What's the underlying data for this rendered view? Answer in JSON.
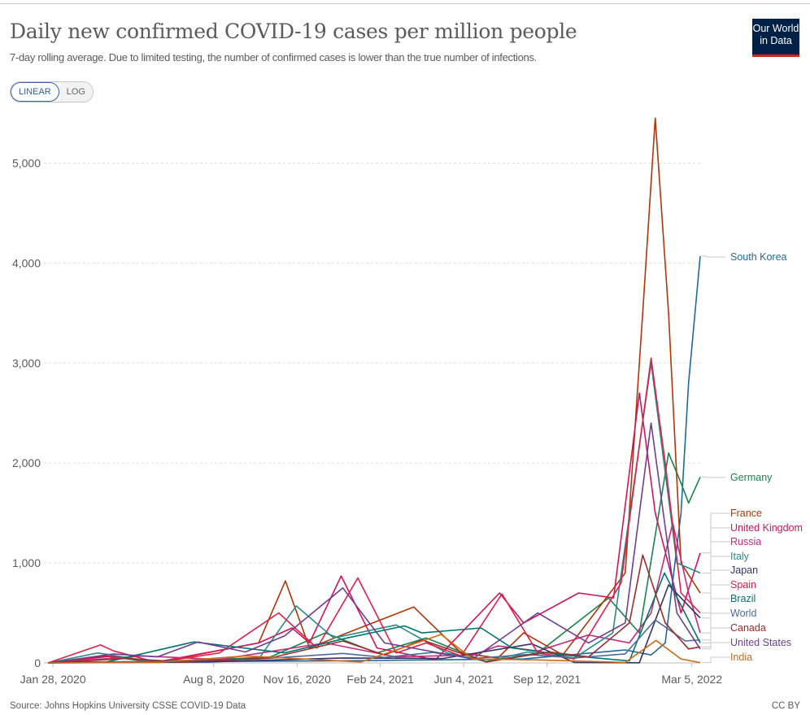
{
  "header": {
    "title": "Daily new confirmed COVID-19 cases per million people",
    "subtitle": "7-day rolling average. Due to limited testing, the number of confirmed cases is lower than the true number of infections.",
    "logo_line1": "Our World",
    "logo_line2": "in Data"
  },
  "scale_toggle": {
    "linear_label": "LINEAR",
    "log_label": "LOG",
    "selected": "LINEAR"
  },
  "footer": {
    "source": "Source: Johns Hopkins University CSSE COVID-19 Data",
    "license": "CC BY"
  },
  "colors": {
    "South Korea": "#1f6a9a",
    "Germany": "#18854c",
    "France": "#b13507",
    "United Kingdom": "#d2145a",
    "Russia": "#c42b7a",
    "Italy": "#2a8c87",
    "Japan": "#333366",
    "Spain": "#e0204b",
    "Brazil": "#00746f",
    "World": "#4c6a9c",
    "Canada": "#9a2d2d",
    "United States": "#6d3e91",
    "India": "#cf6a17"
  },
  "chart_data": {
    "type": "line",
    "title": "Daily new confirmed COVID-19 cases per million people",
    "xlabel": "",
    "ylabel": "",
    "x_ticks": [
      "Jan 28, 2020",
      "Aug 8, 2020",
      "Nov 16, 2020",
      "Feb 24, 2021",
      "Jun 4, 2021",
      "Sep 12, 2021",
      "Mar 5, 2022"
    ],
    "x_range": [
      "2020-01-22",
      "2022-03-15"
    ],
    "y_ticks": [
      0,
      1000,
      2000,
      3000,
      4000,
      5000
    ],
    "y_tick_labels": [
      "0",
      "1,000",
      "2,000",
      "3,000",
      "4,000",
      "5,000"
    ],
    "ylim": [
      0,
      5500
    ],
    "grid": "horizontal",
    "legend": "right (inline end labels)",
    "series": [
      {
        "name": "South Korea",
        "points": [
          [
            "2020-01-22",
            0
          ],
          [
            "2020-03-01",
            10
          ],
          [
            "2020-12-25",
            20
          ],
          [
            "2021-08-15",
            40
          ],
          [
            "2021-12-15",
            130
          ],
          [
            "2022-01-15",
            80
          ],
          [
            "2022-02-01",
            200
          ],
          [
            "2022-02-20",
            1500
          ],
          [
            "2022-03-01",
            2800
          ],
          [
            "2022-03-15",
            4070
          ]
        ]
      },
      {
        "name": "Germany",
        "points": [
          [
            "2020-01-22",
            0
          ],
          [
            "2020-03-28",
            70
          ],
          [
            "2020-06-01",
            5
          ],
          [
            "2020-10-15",
            60
          ],
          [
            "2020-12-20",
            300
          ],
          [
            "2021-02-20",
            100
          ],
          [
            "2021-04-20",
            250
          ],
          [
            "2021-07-01",
            10
          ],
          [
            "2021-09-01",
            100
          ],
          [
            "2021-11-25",
            650
          ],
          [
            "2022-01-01",
            300
          ],
          [
            "2022-02-05",
            2100
          ],
          [
            "2022-02-20",
            1800
          ],
          [
            "2022-03-01",
            1600
          ],
          [
            "2022-03-15",
            1860
          ]
        ]
      },
      {
        "name": "France",
        "points": [
          [
            "2020-01-22",
            0
          ],
          [
            "2020-04-01",
            70
          ],
          [
            "2020-06-01",
            5
          ],
          [
            "2020-10-01",
            200
          ],
          [
            "2020-11-02",
            820
          ],
          [
            "2020-12-01",
            150
          ],
          [
            "2021-01-15",
            300
          ],
          [
            "2021-04-05",
            560
          ],
          [
            "2021-06-01",
            100
          ],
          [
            "2021-07-15",
            50
          ],
          [
            "2021-08-15",
            300
          ],
          [
            "2021-10-01",
            80
          ],
          [
            "2021-12-15",
            900
          ],
          [
            "2022-01-05",
            3500
          ],
          [
            "2022-01-20",
            5450
          ],
          [
            "2022-02-05",
            3500
          ],
          [
            "2022-02-20",
            1000
          ],
          [
            "2022-03-15",
            700
          ]
        ]
      },
      {
        "name": "United Kingdom",
        "points": [
          [
            "2020-01-22",
            0
          ],
          [
            "2020-04-10",
            70
          ],
          [
            "2020-06-01",
            10
          ],
          [
            "2020-10-01",
            200
          ],
          [
            "2020-11-10",
            350
          ],
          [
            "2020-12-01",
            200
          ],
          [
            "2021-01-08",
            870
          ],
          [
            "2021-02-20",
            150
          ],
          [
            "2021-05-01",
            30
          ],
          [
            "2021-07-17",
            700
          ],
          [
            "2021-08-15",
            400
          ],
          [
            "2021-10-20",
            700
          ],
          [
            "2021-12-01",
            650
          ],
          [
            "2022-01-01",
            2700
          ],
          [
            "2022-01-20",
            1500
          ],
          [
            "2022-02-20",
            500
          ],
          [
            "2022-03-15",
            1100
          ]
        ]
      },
      {
        "name": "Russia",
        "points": [
          [
            "2020-01-22",
            0
          ],
          [
            "2020-05-15",
            70
          ],
          [
            "2020-08-15",
            35
          ],
          [
            "2020-12-20",
            200
          ],
          [
            "2021-03-15",
            60
          ],
          [
            "2021-06-15",
            80
          ],
          [
            "2021-07-15",
            170
          ],
          [
            "2021-09-01",
            120
          ],
          [
            "2021-11-01",
            280
          ],
          [
            "2021-12-20",
            200
          ],
          [
            "2022-01-15",
            500
          ],
          [
            "2022-02-10",
            1400
          ],
          [
            "2022-03-01",
            700
          ],
          [
            "2022-03-15",
            300
          ]
        ]
      },
      {
        "name": "Italy",
        "points": [
          [
            "2020-01-22",
            0
          ],
          [
            "2020-03-22",
            100
          ],
          [
            "2020-06-01",
            5
          ],
          [
            "2020-10-01",
            40
          ],
          [
            "2020-11-15",
            570
          ],
          [
            "2020-12-30",
            250
          ],
          [
            "2021-03-15",
            380
          ],
          [
            "2021-05-15",
            100
          ],
          [
            "2021-07-01",
            15
          ],
          [
            "2021-08-20",
            110
          ],
          [
            "2021-10-15",
            50
          ],
          [
            "2021-11-30",
            300
          ],
          [
            "2022-01-15",
            3000
          ],
          [
            "2022-02-15",
            1000
          ],
          [
            "2022-03-15",
            900
          ]
        ]
      },
      {
        "name": "Japan",
        "points": [
          [
            "2020-01-22",
            0
          ],
          [
            "2020-04-15",
            5
          ],
          [
            "2020-08-01",
            10
          ],
          [
            "2021-01-10",
            50
          ],
          [
            "2021-05-10",
            45
          ],
          [
            "2021-08-25",
            190
          ],
          [
            "2021-10-15",
            5
          ],
          [
            "2022-01-01",
            2
          ],
          [
            "2022-02-05",
            780
          ],
          [
            "2022-03-15",
            450
          ]
        ]
      },
      {
        "name": "Spain",
        "points": [
          [
            "2020-01-22",
            0
          ],
          [
            "2020-03-25",
            180
          ],
          [
            "2020-04-10",
            120
          ],
          [
            "2020-06-01",
            5
          ],
          [
            "2020-08-15",
            100
          ],
          [
            "2020-10-25",
            500
          ],
          [
            "2020-12-10",
            150
          ],
          [
            "2021-01-28",
            850
          ],
          [
            "2021-03-15",
            100
          ],
          [
            "2021-04-20",
            200
          ],
          [
            "2021-06-01",
            70
          ],
          [
            "2021-07-20",
            690
          ],
          [
            "2021-09-01",
            100
          ],
          [
            "2021-10-15",
            40
          ],
          [
            "2021-12-10",
            800
          ],
          [
            "2022-01-15",
            3050
          ],
          [
            "2022-02-01",
            2000
          ],
          [
            "2022-02-20",
            700
          ],
          [
            "2022-03-15",
            500
          ]
        ]
      },
      {
        "name": "Brazil",
        "points": [
          [
            "2020-01-22",
            0
          ],
          [
            "2020-04-01",
            10
          ],
          [
            "2020-07-15",
            210
          ],
          [
            "2020-11-01",
            100
          ],
          [
            "2021-01-15",
            250
          ],
          [
            "2021-03-25",
            370
          ],
          [
            "2021-04-15",
            300
          ],
          [
            "2021-06-25",
            350
          ],
          [
            "2021-08-01",
            150
          ],
          [
            "2021-10-01",
            80
          ],
          [
            "2021-12-20",
            20
          ],
          [
            "2022-01-31",
            900
          ],
          [
            "2022-03-15",
            200
          ]
        ]
      },
      {
        "name": "World",
        "points": [
          [
            "2020-01-22",
            0
          ],
          [
            "2020-04-15",
            10
          ],
          [
            "2020-07-01",
            25
          ],
          [
            "2020-10-01",
            40
          ],
          [
            "2021-01-10",
            95
          ],
          [
            "2021-03-01",
            55
          ],
          [
            "2021-04-28",
            105
          ],
          [
            "2021-06-15",
            45
          ],
          [
            "2021-08-20",
            85
          ],
          [
            "2021-10-15",
            50
          ],
          [
            "2021-12-15",
            90
          ],
          [
            "2022-01-20",
            430
          ],
          [
            "2022-02-25",
            220
          ],
          [
            "2022-03-15",
            230
          ]
        ]
      },
      {
        "name": "Canada",
        "points": [
          [
            "2020-01-22",
            0
          ],
          [
            "2020-04-25",
            45
          ],
          [
            "2020-07-01",
            10
          ],
          [
            "2020-10-15",
            50
          ],
          [
            "2021-01-10",
            220
          ],
          [
            "2021-03-01",
            80
          ],
          [
            "2021-04-15",
            230
          ],
          [
            "2021-07-01",
            10
          ],
          [
            "2021-09-15",
            110
          ],
          [
            "2021-11-01",
            60
          ],
          [
            "2021-12-20",
            400
          ],
          [
            "2022-01-05",
            1080
          ],
          [
            "2022-02-01",
            400
          ],
          [
            "2022-03-01",
            140
          ],
          [
            "2022-03-15",
            160
          ]
        ]
      },
      {
        "name": "United States",
        "points": [
          [
            "2020-01-22",
            0
          ],
          [
            "2020-04-10",
            90
          ],
          [
            "2020-06-01",
            60
          ],
          [
            "2020-07-20",
            210
          ],
          [
            "2020-09-15",
            110
          ],
          [
            "2020-11-01",
            270
          ],
          [
            "2021-01-10",
            750
          ],
          [
            "2021-03-01",
            200
          ],
          [
            "2021-06-15",
            40
          ],
          [
            "2021-09-01",
            500
          ],
          [
            "2021-11-01",
            200
          ],
          [
            "2021-12-15",
            400
          ],
          [
            "2022-01-15",
            2400
          ],
          [
            "2022-02-15",
            500
          ],
          [
            "2022-03-15",
            140
          ]
        ]
      },
      {
        "name": "India",
        "points": [
          [
            "2020-01-22",
            0
          ],
          [
            "2020-06-01",
            5
          ],
          [
            "2020-09-15",
            70
          ],
          [
            "2021-02-01",
            10
          ],
          [
            "2021-05-08",
            285
          ],
          [
            "2021-06-15",
            40
          ],
          [
            "2021-09-01",
            30
          ],
          [
            "2021-12-15",
            5
          ],
          [
            "2022-01-21",
            225
          ],
          [
            "2022-02-20",
            40
          ],
          [
            "2022-03-15",
            3
          ]
        ]
      }
    ]
  }
}
